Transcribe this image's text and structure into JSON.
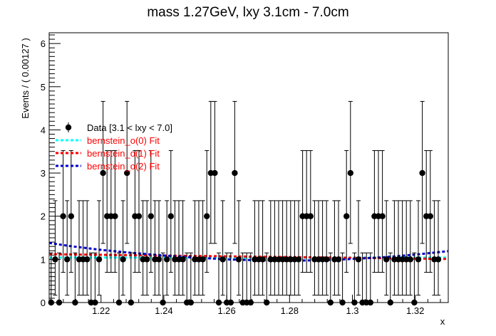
{
  "chart_data": {
    "type": "scatter",
    "title": "mass 1.27GeV, lxy 3.1cm - 7.0cm",
    "xlabel": "x",
    "ylabel": "Events / ( 0.00127 )",
    "xlim": [
      1.2035,
      1.3305
    ],
    "ylim": [
      0,
      6.25
    ],
    "x_ticks": [
      "1.22",
      "1.24",
      "1.26",
      "1.28",
      "1.3",
      "1.32"
    ],
    "x_tick_values": [
      1.22,
      1.24,
      1.26,
      1.28,
      1.3,
      1.32
    ],
    "y_ticks": [
      "0",
      "1",
      "2",
      "3",
      "4",
      "5",
      "6"
    ],
    "y_tick_values": [
      0,
      1,
      2,
      3,
      4,
      5,
      6
    ],
    "bin_width": 0.00127,
    "data": {
      "name": "Data [3.1 < lxy < 7.0]",
      "x_start": 1.204135,
      "counts": [
        0,
        1,
        0,
        2,
        1,
        2,
        0,
        1,
        1,
        1,
        0,
        0,
        1,
        3,
        2,
        2,
        2,
        0,
        1,
        3,
        0,
        2,
        2,
        1,
        1,
        2,
        1,
        1,
        0,
        1,
        2,
        1,
        1,
        1,
        0,
        0,
        1,
        1,
        1,
        2,
        3,
        3,
        0,
        1,
        0,
        0,
        3,
        1,
        0,
        0,
        0,
        1,
        1,
        1,
        0,
        1,
        1,
        1,
        1,
        1,
        1,
        1,
        1,
        2,
        2,
        2,
        1,
        1,
        1,
        1,
        0,
        1,
        1,
        0,
        2,
        3,
        0,
        1,
        0,
        0,
        0,
        2,
        2,
        2,
        1,
        0,
        1,
        1,
        1,
        1,
        1,
        0,
        1,
        3,
        2,
        2,
        1,
        1
      ]
    },
    "series": [
      {
        "name": "bernstein_o(0) Fit",
        "color": "#00ffff",
        "x": [
          1.2035,
          1.3305
        ],
        "y": [
          1.04,
          1.04
        ]
      },
      {
        "name": "bernstein_o(1) Fit",
        "color": "#ff0000",
        "x": [
          1.2035,
          1.3305
        ],
        "y": [
          1.12,
          1.01
        ]
      },
      {
        "name": "bernstein_o(2) Fit",
        "color": "#0000cc",
        "x": [
          1.2035,
          1.21,
          1.22,
          1.23,
          1.24,
          1.25,
          1.26,
          1.27,
          1.28,
          1.29,
          1.3,
          1.31,
          1.32,
          1.3305
        ],
        "y": [
          1.38,
          1.31,
          1.22,
          1.15,
          1.09,
          1.04,
          1.0,
          0.98,
          0.97,
          0.98,
          1.01,
          1.05,
          1.11,
          1.19
        ]
      }
    ],
    "legend_position": "top-left",
    "grid": false
  }
}
